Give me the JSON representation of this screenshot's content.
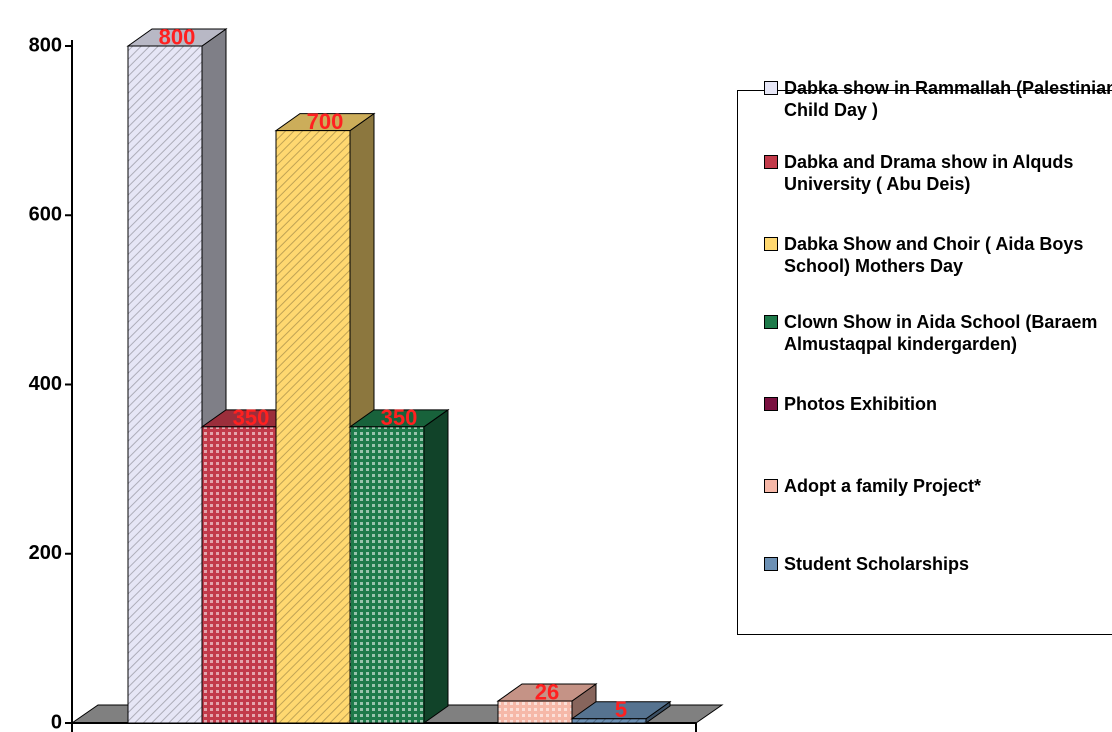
{
  "chart_data": {
    "type": "bar3d",
    "categories": [
      null
    ],
    "ylim": [
      0,
      800
    ],
    "yticks": [
      0,
      200,
      400,
      600,
      800
    ],
    "legend": "right",
    "series": [
      {
        "name": "Dabka show in Rammallah (Palestinian Child Day )",
        "color": "#e6e6f6",
        "values": [
          800
        ]
      },
      {
        "name": "Dabka and Drama show in Alquds University ( Abu Deis)",
        "color": "#c23a4a",
        "values": [
          350
        ]
      },
      {
        "name": "Dabka Show and Choir ( Aida Boys School) Mothers Day",
        "color": "#ffd870",
        "values": [
          700
        ]
      },
      {
        "name": "Clown Show in Aida School (Baraem Almustaqpal kindergarden)",
        "color": "#1e7a4a",
        "values": [
          350
        ]
      },
      {
        "name": "Photos Exhibition",
        "color": "#7a1040",
        "values": [
          null
        ]
      },
      {
        "name": "Adopt a family Project*",
        "color": "#f6b8a8",
        "values": [
          26
        ]
      },
      {
        "name": "Student Scholarships",
        "color": "#6c90b4",
        "values": [
          5
        ]
      }
    ]
  }
}
